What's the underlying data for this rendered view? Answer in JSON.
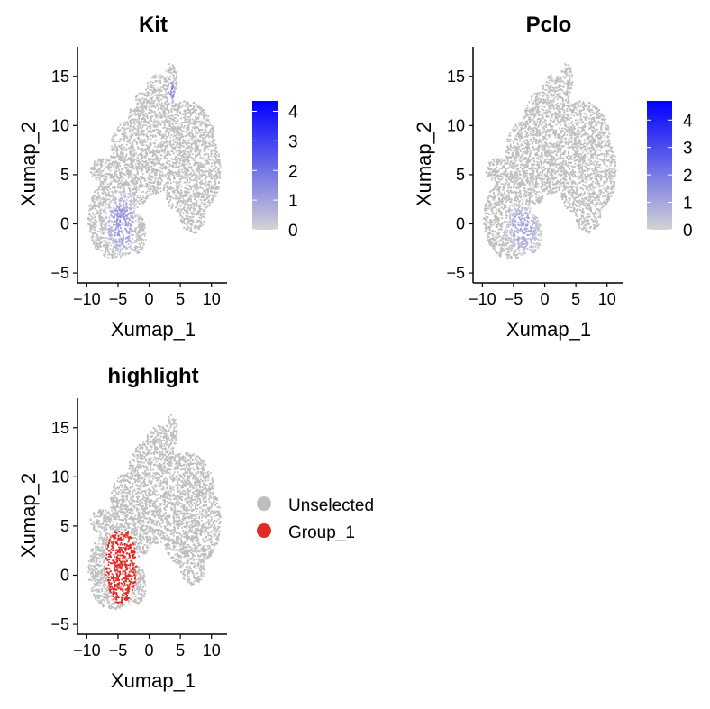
{
  "colors": {
    "background": "#ffffff",
    "axis": "#000000",
    "cell_grey": "#bebebe",
    "low": "#d3d3d3",
    "high": "#0000ff",
    "highlight": "#de2d26"
  },
  "chart_data": [
    {
      "type": "scatter",
      "title": "Kit",
      "xlabel": "Xumap_1",
      "ylabel": "Xumap_2",
      "xlim": [
        -11.5,
        12.5
      ],
      "ylim": [
        -6,
        18
      ],
      "xticks": [
        -10,
        -5,
        0,
        5,
        10
      ],
      "xtick_labels": [
        "−10",
        "−5",
        "0",
        "5",
        "10"
      ],
      "yticks": [
        -5,
        0,
        5,
        10,
        15
      ],
      "ytick_labels": [
        "−5",
        "0",
        "5",
        "10",
        "15"
      ],
      "legend": {
        "type": "colorbar",
        "min": 0,
        "max": 4.35,
        "ticks": [
          0,
          1,
          2,
          3,
          4
        ],
        "tick_labels": [
          "0",
          "1",
          "2",
          "3",
          "4"
        ],
        "placement": "right"
      },
      "expression_region": {
        "x_range": [
          -7,
          -2
        ],
        "y_range": [
          -3,
          3
        ],
        "peak": 1.5,
        "hotspot": {
          "x": 3.5,
          "y": 13.5,
          "value": 2.5
        }
      }
    },
    {
      "type": "scatter",
      "title": "Pclo",
      "xlabel": "Xumap_1",
      "ylabel": "Xumap_2",
      "xlim": [
        -11.5,
        12.5
      ],
      "ylim": [
        -6,
        18
      ],
      "xticks": [
        -10,
        -5,
        0,
        5,
        10
      ],
      "xtick_labels": [
        "−10",
        "−5",
        "0",
        "5",
        "10"
      ],
      "yticks": [
        -5,
        0,
        5,
        10,
        15
      ],
      "ytick_labels": [
        "−5",
        "0",
        "5",
        "10",
        "15"
      ],
      "legend": {
        "type": "colorbar",
        "min": 0,
        "max": 4.7,
        "ticks": [
          0,
          1,
          2,
          3,
          4
        ],
        "tick_labels": [
          "0",
          "1",
          "2",
          "3",
          "4"
        ],
        "placement": "right"
      },
      "expression_region": {
        "x_range": [
          -6,
          -1
        ],
        "y_range": [
          -3,
          2
        ],
        "peak": 1.2
      }
    },
    {
      "type": "scatter",
      "title": "highlight",
      "xlabel": "Xumap_1",
      "ylabel": "Xumap_2",
      "xlim": [
        -11.5,
        12.5
      ],
      "ylim": [
        -6,
        18
      ],
      "xticks": [
        -10,
        -5,
        0,
        5,
        10
      ],
      "xtick_labels": [
        "−10",
        "−5",
        "0",
        "5",
        "10"
      ],
      "yticks": [
        -5,
        0,
        5,
        10,
        15
      ],
      "ytick_labels": [
        "−5",
        "0",
        "5",
        "10",
        "15"
      ],
      "legend": {
        "type": "categorical",
        "placement": "right",
        "entries": [
          {
            "label": "Unselected",
            "color": "#bebebe"
          },
          {
            "label": "Group_1",
            "color": "#de2d26"
          }
        ]
      },
      "groups": [
        {
          "name": "Group_1",
          "x_range": [
            -7,
            -2
          ],
          "y_range": [
            -3,
            5
          ]
        }
      ]
    }
  ]
}
